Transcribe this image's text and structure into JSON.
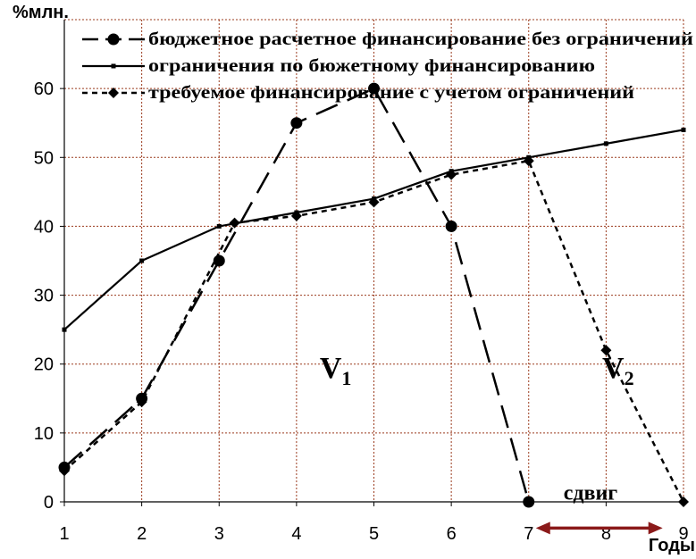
{
  "chart_data": {
    "type": "line",
    "ylabel": "%млн.",
    "xlabel": "Годы",
    "x": [
      1,
      2,
      3,
      4,
      5,
      6,
      7,
      8,
      9
    ],
    "ylim": [
      0,
      70
    ],
    "yticks": [
      0,
      10,
      20,
      30,
      40,
      50,
      60
    ],
    "grid": true,
    "legend_position": "top",
    "series": [
      {
        "name": "бюджетное расчетное финансирование без ограничений",
        "style": "long-dash",
        "marker": "circle",
        "color": "#000000",
        "points": [
          [
            1,
            5
          ],
          [
            2,
            15
          ],
          [
            3,
            35
          ],
          [
            4,
            55
          ],
          [
            5,
            60
          ],
          [
            6,
            40
          ],
          [
            7,
            0
          ]
        ]
      },
      {
        "name": "ограничения по бюжетному финансированию",
        "style": "solid",
        "marker": "small-square",
        "color": "#000000",
        "points": [
          [
            1,
            25
          ],
          [
            2,
            35
          ],
          [
            3,
            40
          ],
          [
            4,
            42
          ],
          [
            5,
            44
          ],
          [
            6,
            48
          ],
          [
            7,
            50
          ],
          [
            8,
            52
          ],
          [
            9,
            54
          ]
        ]
      },
      {
        "name": "требуемое финансирование с учетом ограничений",
        "style": "short-dash",
        "marker": "diamond",
        "color": "#000000",
        "points": [
          [
            1,
            4.5
          ],
          [
            2,
            14.5
          ],
          [
            3.2,
            40.5
          ],
          [
            4,
            41.5
          ],
          [
            5,
            43.5
          ],
          [
            6,
            47.5
          ],
          [
            7,
            49.5
          ],
          [
            8,
            22
          ],
          [
            9,
            0
          ]
        ]
      }
    ],
    "annotations": {
      "v1": {
        "main": "V",
        "sub": "1",
        "x": 4.3,
        "y": 18
      },
      "v2": {
        "main": "V",
        "sub": "2",
        "x": 7.95,
        "y": 18
      },
      "shift": {
        "label": "сдвиг",
        "x": 7.45,
        "y": 0.3,
        "arrow_from": 7,
        "arrow_to": 8.8,
        "arrow_y": -3.8,
        "color": "#8B1A1A"
      }
    }
  }
}
